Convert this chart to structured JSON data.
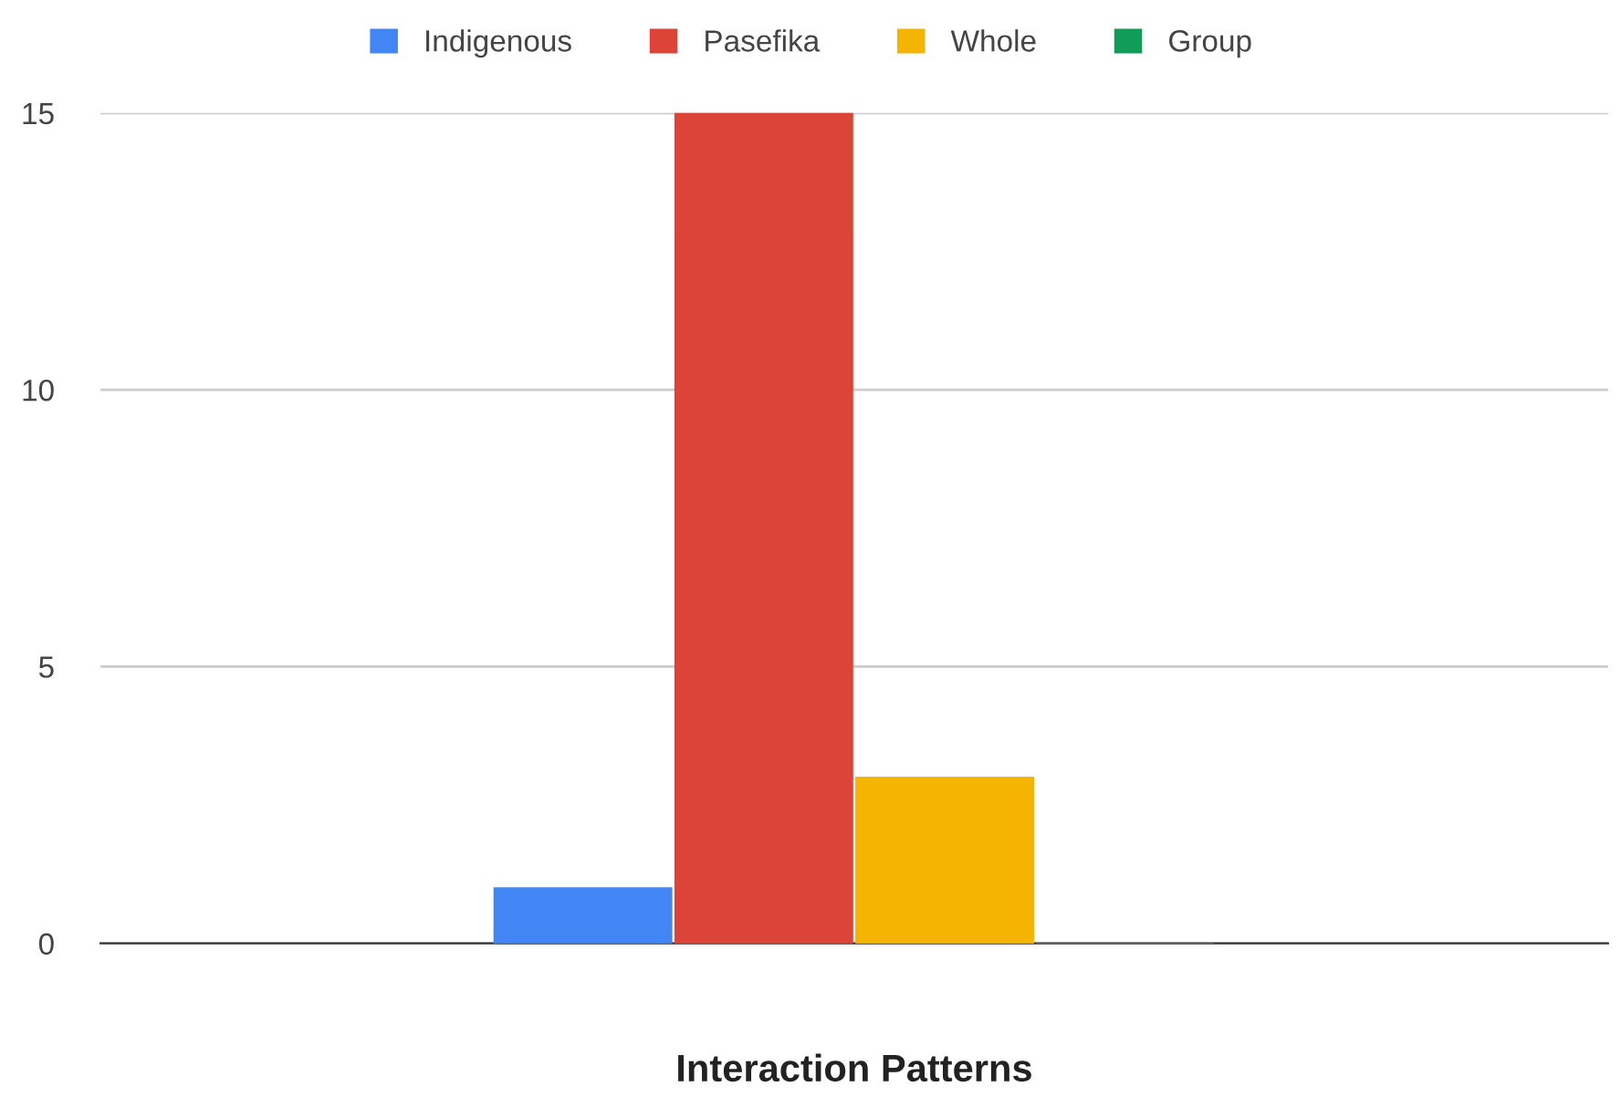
{
  "chart_data": {
    "type": "bar",
    "xlabel": "Interaction Patterns",
    "categories": [
      null
    ],
    "series": [
      {
        "name": "Indigenous",
        "color": "#4285f4",
        "values": [
          1
        ]
      },
      {
        "name": "Pasefika",
        "color": "#db4437",
        "values": [
          15
        ]
      },
      {
        "name": "Whole",
        "color": "#f4b400",
        "values": [
          3
        ]
      },
      {
        "name": "Group",
        "color": "#0f9d58",
        "values": [
          0
        ]
      }
    ],
    "ylim": [
      0,
      15
    ],
    "yticks": [
      0,
      5,
      10,
      15
    ],
    "grid": "y",
    "legend": "top"
  }
}
